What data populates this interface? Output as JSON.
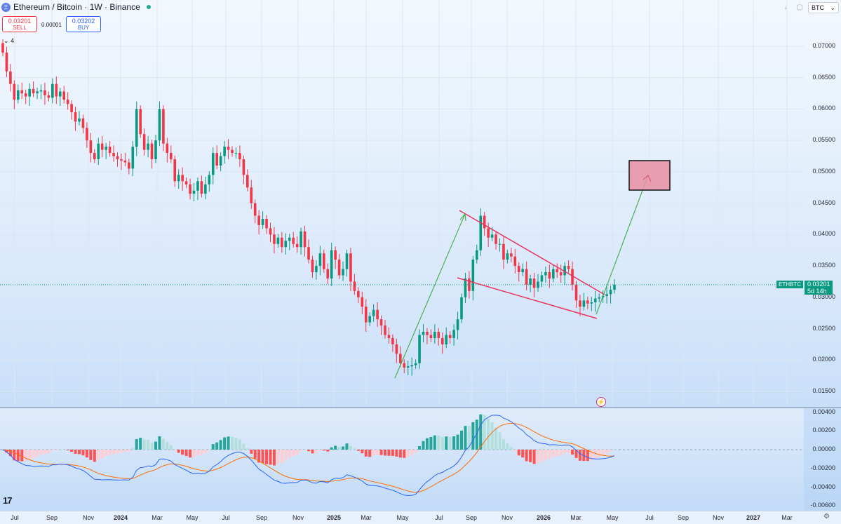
{
  "header": {
    "symbol_title": "Ethereum / Bitcoin · 1W · Binance",
    "logo_glyph": "Ξ",
    "sell_price": "0.03201",
    "sell_label": "SELL",
    "buy_price": "0.03202",
    "buy_label": "BUY",
    "spread": "0.00001",
    "indicators_count": "4",
    "currency": "BTC"
  },
  "last_price": {
    "symbol": "ETHBTC",
    "price": "0.03201",
    "countdown": "5d 14h"
  },
  "price_scale": [
    "0.07000",
    "0.06500",
    "0.06000",
    "0.05500",
    "0.05000",
    "0.04500",
    "0.04000",
    "0.03500",
    "0.03000",
    "0.02500",
    "0.02000",
    "0.01500"
  ],
  "macd_scale": [
    "0.00400",
    "0.00200",
    "0.00000",
    "-0.00200",
    "-0.00400",
    "-0.00600"
  ],
  "time_axis": [
    {
      "label": "Jul",
      "bold": false
    },
    {
      "label": "Sep",
      "bold": false
    },
    {
      "label": "Nov",
      "bold": false
    },
    {
      "label": "2024",
      "bold": true
    },
    {
      "label": "Mar",
      "bold": false
    },
    {
      "label": "May",
      "bold": false
    },
    {
      "label": "Jul",
      "bold": false
    },
    {
      "label": "Sep",
      "bold": false
    },
    {
      "label": "Nov",
      "bold": false
    },
    {
      "label": "2025",
      "bold": true
    },
    {
      "label": "Mar",
      "bold": false
    },
    {
      "label": "May",
      "bold": false
    },
    {
      "label": "Jul",
      "bold": false
    },
    {
      "label": "Sep",
      "bold": false
    },
    {
      "label": "Nov",
      "bold": false
    },
    {
      "label": "2026",
      "bold": true
    },
    {
      "label": "Mar",
      "bold": false
    },
    {
      "label": "May",
      "bold": false
    },
    {
      "label": "Jul",
      "bold": false
    },
    {
      "label": "Sep",
      "bold": false
    },
    {
      "label": "Nov",
      "bold": false
    },
    {
      "label": "2027",
      "bold": true
    },
    {
      "label": "Mar",
      "bold": false
    }
  ],
  "colors": {
    "up": "#089981",
    "down": "#f23645",
    "macd": "#2962ff",
    "signal": "#ff6d00",
    "wedge": "#e8365d",
    "arrow": "#4caf50",
    "target": "#e88fa3"
  },
  "chart_data": {
    "type": "candlestick",
    "ylim": [
      0.0125,
      0.0775
    ],
    "closes": [
      0.069,
      0.066,
      0.064,
      0.0615,
      0.063,
      0.0625,
      0.062,
      0.0632,
      0.0625,
      0.0628,
      0.063,
      0.0622,
      0.0618,
      0.064,
      0.062,
      0.0628,
      0.0615,
      0.0608,
      0.0595,
      0.058,
      0.0585,
      0.057,
      0.055,
      0.053,
      0.052,
      0.0545,
      0.0535,
      0.054,
      0.053,
      0.0525,
      0.052,
      0.0518,
      0.0515,
      0.0505,
      0.054,
      0.06,
      0.056,
      0.0535,
      0.0545,
      0.052,
      0.055,
      0.06,
      0.0545,
      0.053,
      0.052,
      0.0485,
      0.0495,
      0.0485,
      0.048,
      0.0465,
      0.047,
      0.0485,
      0.0465,
      0.048,
      0.0495,
      0.053,
      0.051,
      0.0525,
      0.054,
      0.0535,
      0.053,
      0.053,
      0.052,
      0.0495,
      0.0475,
      0.045,
      0.043,
      0.0415,
      0.0425,
      0.041,
      0.04,
      0.0385,
      0.0395,
      0.038,
      0.039,
      0.0395,
      0.0385,
      0.038,
      0.0405,
      0.038,
      0.036,
      0.034,
      0.035,
      0.037,
      0.0345,
      0.033,
      0.0375,
      0.036,
      0.0335,
      0.0345,
      0.037,
      0.0325,
      0.031,
      0.03,
      0.0285,
      0.026,
      0.027,
      0.028,
      0.0265,
      0.0255,
      0.024,
      0.0235,
      0.0225,
      0.021,
      0.0195,
      0.0188,
      0.019,
      0.0192,
      0.0195,
      0.024,
      0.0245,
      0.024,
      0.0235,
      0.0245,
      0.0235,
      0.0225,
      0.024,
      0.0235,
      0.0248,
      0.0265,
      0.03,
      0.033,
      0.031,
      0.036,
      0.0375,
      0.043,
      0.041,
      0.0395,
      0.04,
      0.0385,
      0.0385,
      0.036,
      0.037,
      0.0365,
      0.035,
      0.034,
      0.0345,
      0.032,
      0.033,
      0.0315,
      0.0325,
      0.0335,
      0.034,
      0.033,
      0.0345,
      0.034,
      0.0335,
      0.035,
      0.0345,
      0.032,
      0.0295,
      0.0285,
      0.0295,
      0.029,
      0.0292,
      0.0298,
      0.03,
      0.0302,
      0.0305,
      0.0312,
      0.032
    ],
    "annotations": {
      "wedge_upper": [
        [
          0.0435,
          "Aug 2025"
        ],
        [
          0.0302,
          "Apr 2026"
        ]
      ],
      "wedge_lower": [
        [
          0.034,
          "Jul 2025"
        ],
        [
          0.0268,
          "Apr 2026"
        ]
      ],
      "target_zone": [
        0.0472,
        0.0518
      ]
    }
  }
}
